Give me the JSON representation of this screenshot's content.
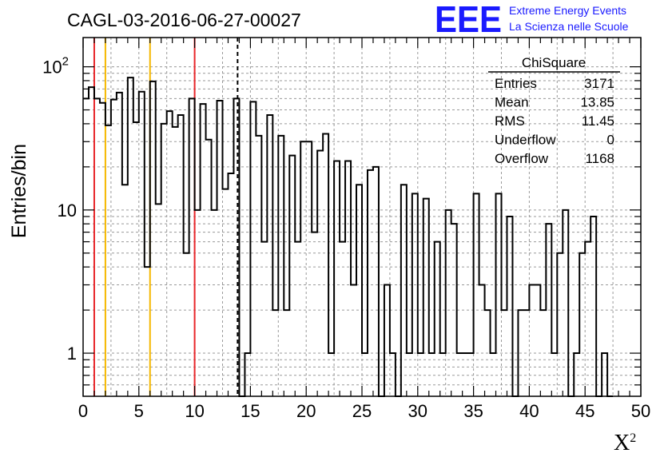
{
  "chart_data": {
    "type": "histogram",
    "title": "CAGL-03-2016-06-27-00027",
    "xlabel": "X",
    "xlabel_superscript": "2",
    "ylabel": "Entries/bin",
    "xlim": [
      0,
      50
    ],
    "ylim": [
      0.5,
      160
    ],
    "yscale": "log",
    "grid": true,
    "bin_width": 0.5,
    "x_ticks": [
      "0",
      "5",
      "10",
      "15",
      "20",
      "25",
      "30",
      "35",
      "40",
      "45",
      "50"
    ],
    "y_tick_labels": [
      {
        "value": 1,
        "label": "1"
      },
      {
        "value": 10,
        "label": "10"
      },
      {
        "value": 100,
        "label": "10",
        "exponent": "2"
      }
    ],
    "values": [
      60,
      72,
      60,
      56,
      39,
      59,
      66,
      15,
      84,
      41,
      67,
      4,
      79,
      11,
      40,
      49,
      38,
      46,
      5,
      60,
      10,
      55,
      31,
      10,
      58,
      14,
      18,
      60,
      0,
      1,
      57,
      33,
      6,
      46,
      2,
      33,
      2,
      24,
      6,
      30,
      30,
      7,
      26,
      34,
      1,
      22,
      6,
      22,
      3,
      15,
      1,
      19,
      20,
      0,
      3,
      1,
      0,
      15,
      1,
      13,
      1,
      12,
      1,
      6,
      1,
      10,
      8,
      1,
      1,
      1,
      13,
      3,
      2,
      1,
      13,
      2,
      9,
      0,
      2,
      2,
      3,
      3,
      2,
      8,
      1,
      5,
      10,
      0,
      1,
      5,
      6,
      9,
      0,
      1,
      0
    ],
    "vertical_markers": [
      {
        "x": 1,
        "color": "#e8262a",
        "style": "solid"
      },
      {
        "x": 2,
        "color": "#f5b800",
        "style": "solid"
      },
      {
        "x": 6,
        "color": "#f5b800",
        "style": "solid"
      },
      {
        "x": 10,
        "color": "#e8262a",
        "style": "solid"
      },
      {
        "x": 13.85,
        "color": "#000000",
        "style": "dashed"
      }
    ],
    "stats_box": {
      "title": "ChiSquare",
      "rows": [
        {
          "label": "Entries",
          "value": "3171"
        },
        {
          "label": "Mean",
          "value": "13.85"
        },
        {
          "label": "RMS",
          "value": "11.45"
        },
        {
          "label": "Underflow",
          "value": "0"
        },
        {
          "label": "Overflow",
          "value": "1168"
        }
      ]
    }
  },
  "logo": {
    "mark": "EEE",
    "line1": "Extreme Energy Events",
    "line2": "La Scienza nelle Scuole",
    "color": "#1a1aff"
  }
}
